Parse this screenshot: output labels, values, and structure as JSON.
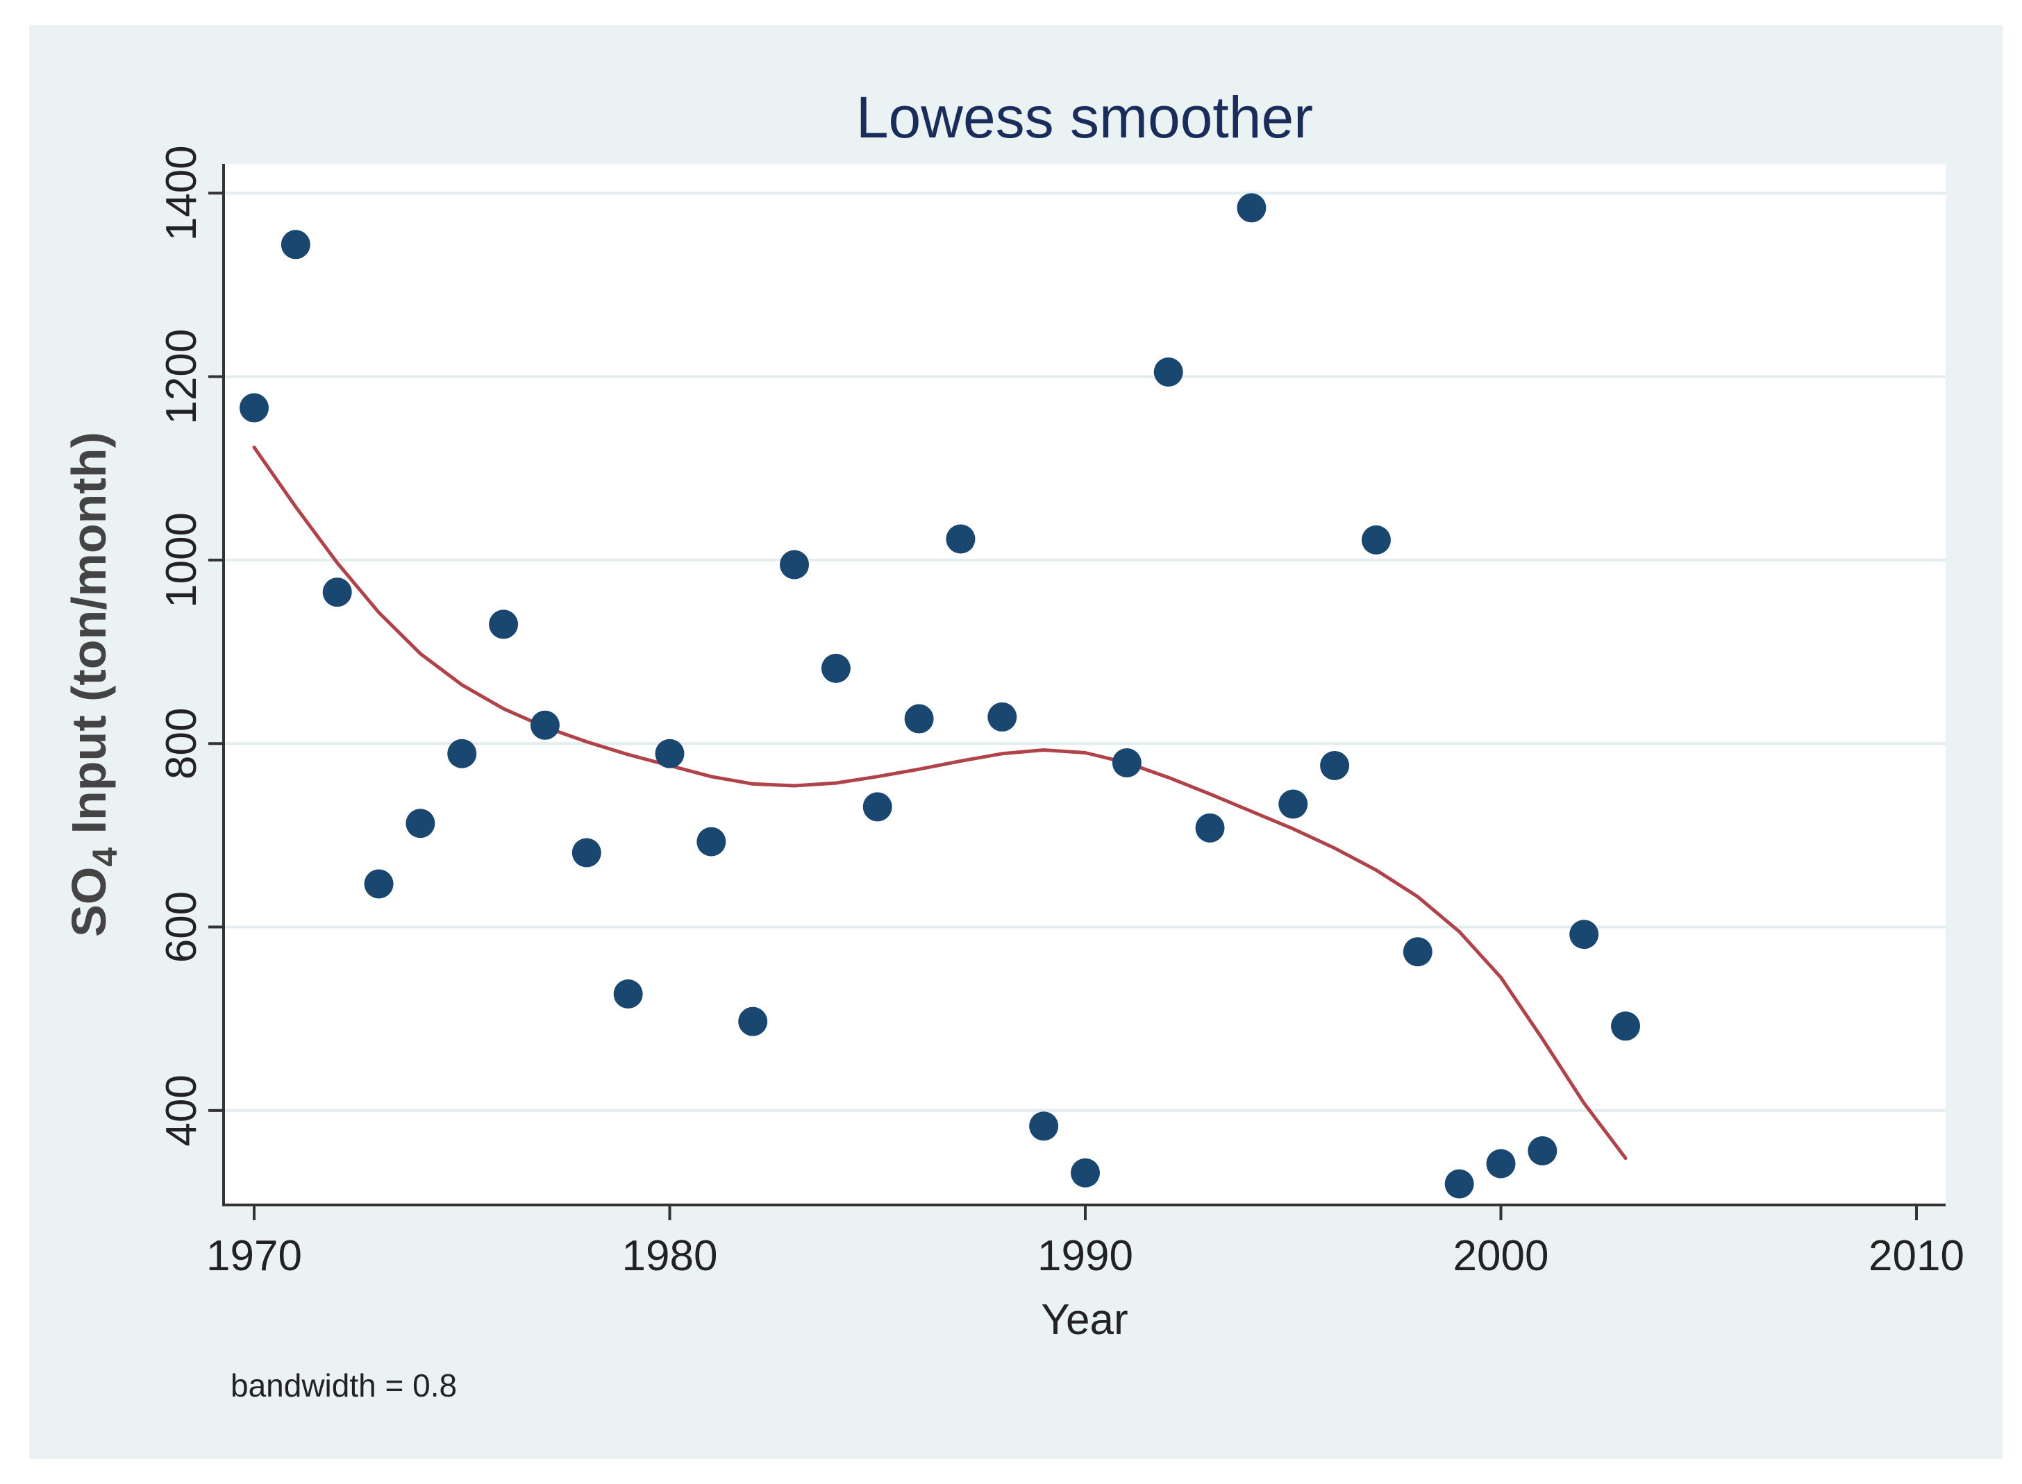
{
  "chart_data": {
    "type": "scatter",
    "title": "Lowess smoother",
    "xlabel": "Year",
    "ylabel_main": "SO",
    "ylabel_sub": "4",
    "ylabel_rest": " Input (ton/month)",
    "note": "bandwidth = 0.8",
    "xlim": [
      1969.25,
      2010.75
    ],
    "ylim": [
      297,
      1432
    ],
    "xticks": [
      1970,
      1980,
      1990,
      2000,
      2010
    ],
    "yticks": [
      400,
      600,
      800,
      1000,
      1200,
      1400
    ],
    "grid": true,
    "colors": {
      "outer_background": "#eaf2f3",
      "plot_background": "#ffffff",
      "grid": "#e3ecee",
      "points": "#1a476f",
      "smoother": "#b0434a",
      "title": "#1a2d5a",
      "text": "#222222"
    },
    "series": [
      {
        "name": "SO4 Input",
        "kind": "scatter",
        "x": [
          1970,
          1971,
          1972,
          1973,
          1974,
          1975,
          1976,
          1977,
          1978,
          1979,
          1980,
          1981,
          1982,
          1983,
          1984,
          1985,
          1986,
          1987,
          1988,
          1989,
          1990,
          1991,
          1992,
          1993,
          1994,
          1995,
          1996,
          1997,
          1998,
          1999,
          2000,
          2001,
          2002,
          2003
        ],
        "y": [
          1166,
          1344,
          965,
          647,
          713,
          789,
          930,
          820,
          681,
          527,
          789,
          693,
          497,
          995,
          882,
          731,
          827,
          1023,
          829,
          383,
          332,
          779,
          1205,
          708,
          1384,
          734,
          776,
          1022,
          573,
          320,
          342,
          356,
          592,
          492
        ]
      },
      {
        "name": "Lowess smoother",
        "kind": "line",
        "x": [
          1970,
          1971,
          1972,
          1973,
          1974,
          1975,
          1976,
          1977,
          1978,
          1979,
          1980,
          1981,
          1982,
          1983,
          1984,
          1985,
          1986,
          1987,
          1988,
          1989,
          1990,
          1991,
          1992,
          1993,
          1994,
          1995,
          1996,
          1997,
          1998,
          1999,
          2000,
          2001,
          2002,
          2003
        ],
        "y": [
          1123,
          1058,
          997,
          943,
          898,
          864,
          838,
          818,
          802,
          788,
          776,
          764,
          756,
          754,
          757,
          764,
          772,
          781,
          789,
          793,
          790,
          779,
          763,
          745,
          726,
          707,
          686,
          662,
          633,
          595,
          545,
          478,
          408,
          348
        ]
      }
    ]
  }
}
